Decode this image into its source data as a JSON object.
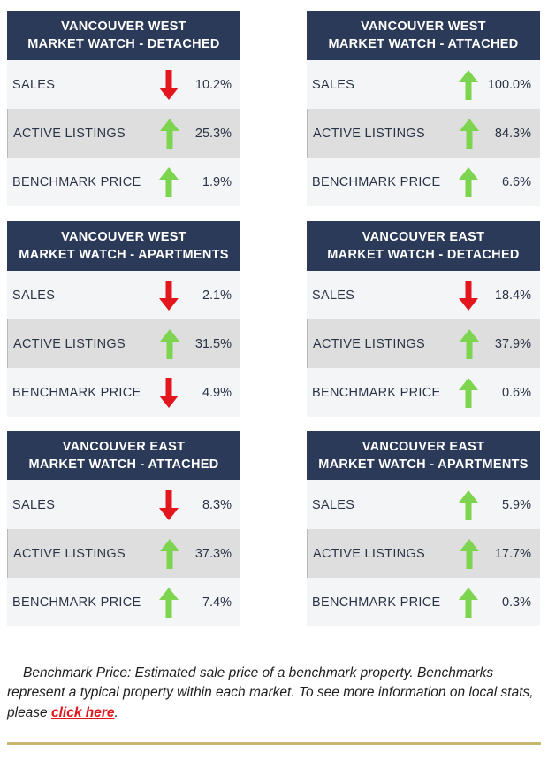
{
  "cards": [
    {
      "title_line1": "VANCOUVER WEST",
      "title_line2": "MARKET WATCH - DETACHED",
      "rows": [
        {
          "label": "SALES",
          "direction": "down",
          "value": "10.2%"
        },
        {
          "label": "ACTIVE LISTINGS",
          "direction": "up",
          "value": "25.3%"
        },
        {
          "label": "BENCHMARK PRICE",
          "direction": "up",
          "value": "1.9%"
        }
      ]
    },
    {
      "title_line1": "VANCOUVER WEST",
      "title_line2": "MARKET WATCH - ATTACHED",
      "rows": [
        {
          "label": "SALES",
          "direction": "up",
          "value": "100.0%"
        },
        {
          "label": "ACTIVE LISTINGS",
          "direction": "up",
          "value": "84.3%"
        },
        {
          "label": "BENCHMARK PRICE",
          "direction": "up",
          "value": "6.6%"
        }
      ]
    },
    {
      "title_line1": "VANCOUVER WEST",
      "title_line2": "MARKET WATCH - APARTMENTS",
      "rows": [
        {
          "label": "SALES",
          "direction": "down",
          "value": "2.1%"
        },
        {
          "label": "ACTIVE LISTINGS",
          "direction": "up",
          "value": "31.5%"
        },
        {
          "label": "BENCHMARK PRICE",
          "direction": "down",
          "value": "4.9%"
        }
      ]
    },
    {
      "title_line1": "VANCOUVER EAST",
      "title_line2": "MARKET WATCH - DETACHED",
      "rows": [
        {
          "label": "SALES",
          "direction": "down",
          "value": "18.4%"
        },
        {
          "label": "ACTIVE LISTINGS",
          "direction": "up",
          "value": "37.9%"
        },
        {
          "label": "BENCHMARK PRICE",
          "direction": "up",
          "value": "0.6%"
        }
      ]
    },
    {
      "title_line1": "VANCOUVER EAST",
      "title_line2": "MARKET WATCH - ATTACHED",
      "rows": [
        {
          "label": "SALES",
          "direction": "down",
          "value": "8.3%"
        },
        {
          "label": "ACTIVE LISTINGS",
          "direction": "up",
          "value": "37.3%"
        },
        {
          "label": "BENCHMARK PRICE",
          "direction": "up",
          "value": "7.4%"
        }
      ]
    },
    {
      "title_line1": "VANCOUVER EAST",
      "title_line2": "MARKET WATCH - APARTMENTS",
      "rows": [
        {
          "label": "SALES",
          "direction": "up",
          "value": "5.9%"
        },
        {
          "label": "ACTIVE LISTINGS",
          "direction": "up",
          "value": "17.7%"
        },
        {
          "label": "BENCHMARK PRICE",
          "direction": "up",
          "value": "0.3%"
        }
      ]
    }
  ],
  "note": {
    "text": "Benchmark Price: Estimated sale price of a benchmark property. Benchmarks represent a typical property within each market. To see more information on local stats, please ",
    "link_text": "click here",
    "end": "."
  },
  "colors": {
    "header_bg": "#2b3a58",
    "arrow_up": "#7dd44f",
    "arrow_down": "#e3161d",
    "link": "#e3161d",
    "rule": "#c8b86f"
  },
  "icons": {
    "up": "arrow-up-icon",
    "down": "arrow-down-icon"
  }
}
